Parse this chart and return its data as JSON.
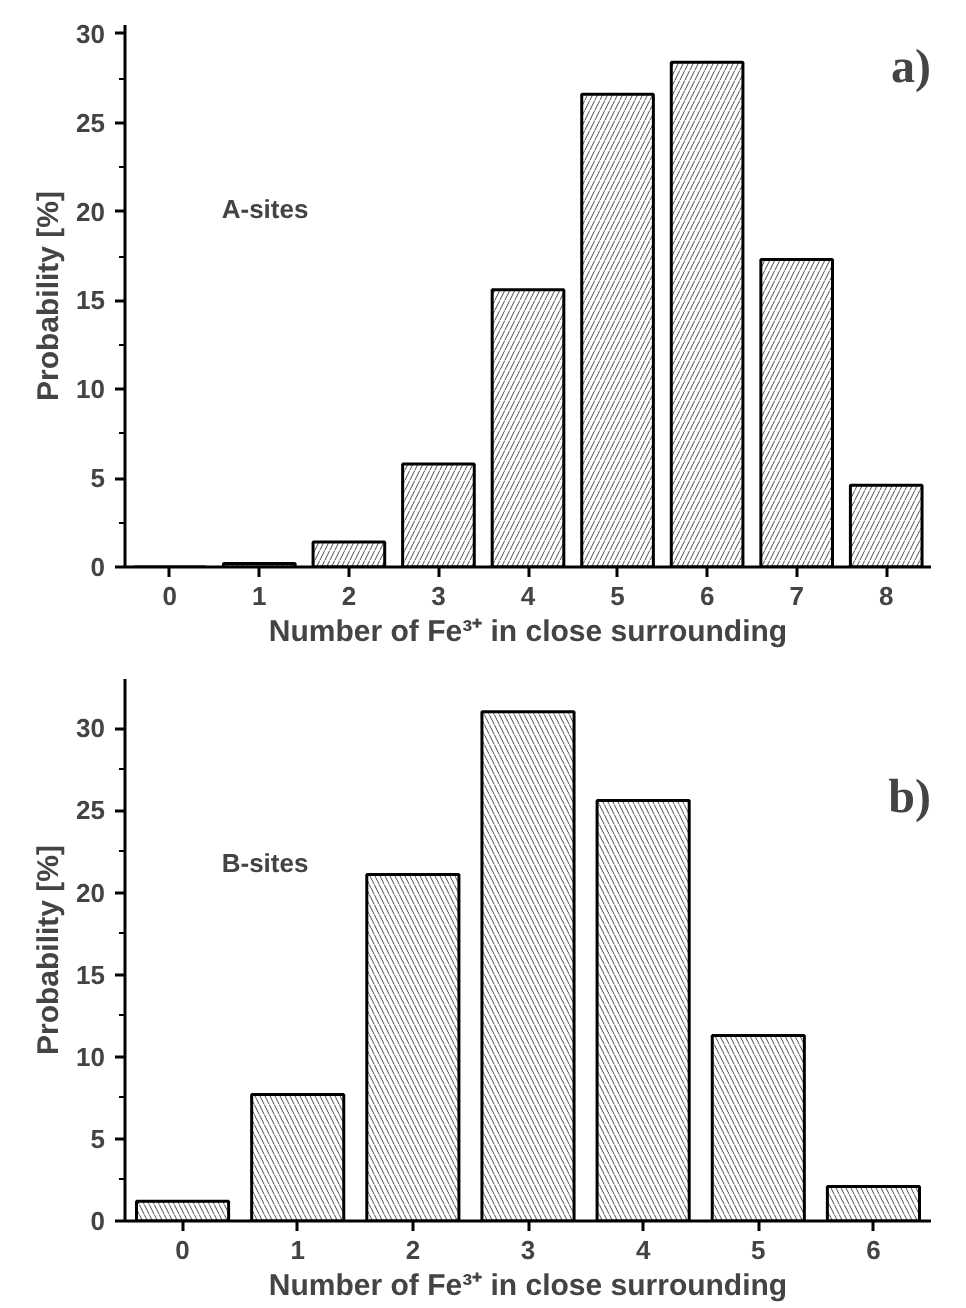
{
  "chart_data": [
    {
      "type": "bar",
      "categories": [
        "0",
        "1",
        "2",
        "3",
        "4",
        "5",
        "6",
        "7",
        "8"
      ],
      "values": [
        0,
        0.2,
        1.4,
        5.8,
        15.6,
        26.6,
        28.4,
        17.3,
        4.6
      ],
      "color": "#000000",
      "xlabel": "Number of Fe³⁺ in close surrounding",
      "ylabel": "Probability [%]",
      "ylim": [
        0,
        30.5
      ],
      "yticks": [
        0,
        5,
        10,
        15,
        20,
        25,
        30
      ],
      "annotations": [
        "A-sites",
        "a)"
      ]
    },
    {
      "type": "bar",
      "categories": [
        "0",
        "1",
        "2",
        "3",
        "4",
        "5",
        "6"
      ],
      "values": [
        1.2,
        7.7,
        21.1,
        31.0,
        25.6,
        11.3,
        2.1
      ],
      "color": "#000000",
      "xlabel": "Number of Fe³⁺ in close surrounding",
      "ylabel": "Probability [%]",
      "ylim": [
        0,
        33
      ],
      "yticks": [
        0,
        5,
        10,
        15,
        20,
        25,
        30
      ],
      "annotations": [
        "B-sites",
        "b)"
      ]
    }
  ]
}
